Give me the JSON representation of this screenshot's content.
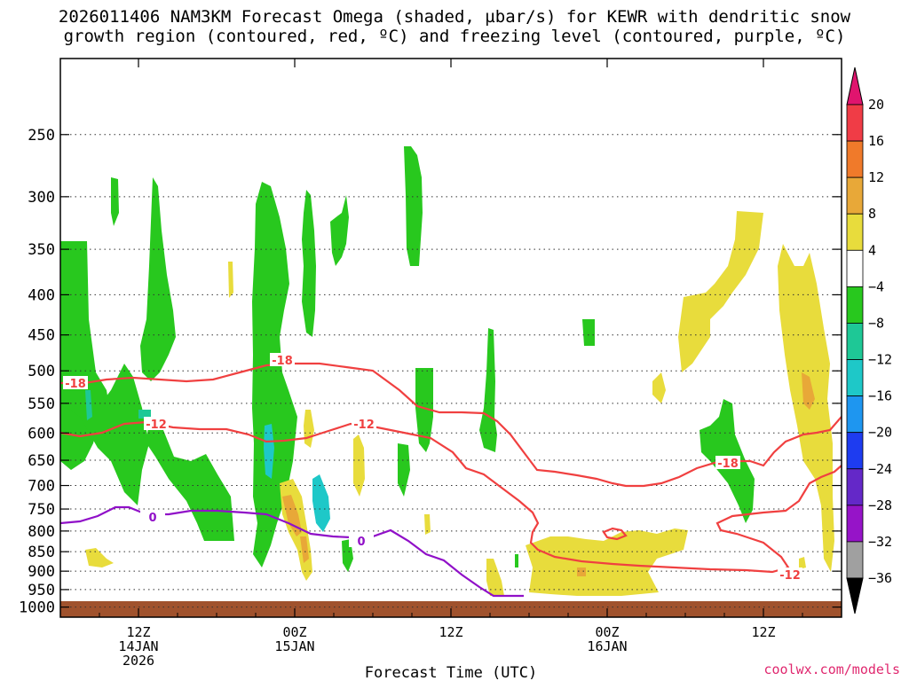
{
  "title_line1": "2026011406 NAM3KM Forecast Omega (shaded, µbar/s) for KEWR with dendritic snow",
  "title_line2": "growth region (contoured, red, ºC) and freezing level (contoured, purple, ºC)",
  "credit": "coolwx.com/models",
  "chart_data": {
    "type": "contour",
    "xlabel": "Forecast Time (UTC)",
    "ylabel": "",
    "y_log_pressure": true,
    "y_ticks": [
      "250",
      "300",
      "350",
      "400",
      "450",
      "500",
      "550",
      "600",
      "650",
      "700",
      "750",
      "800",
      "850",
      "900",
      "950",
      "1000"
    ],
    "y_tick_values": [
      250,
      300,
      350,
      400,
      450,
      500,
      550,
      600,
      650,
      700,
      750,
      800,
      850,
      900,
      950,
      1000
    ],
    "x_ticks": [
      {
        "label1": "12Z",
        "label2": "14JAN",
        "label3": "2026",
        "hour": 6
      },
      {
        "label1": "00Z",
        "label2": "15JAN",
        "label3": "",
        "hour": 18
      },
      {
        "label1": "12Z",
        "label2": "",
        "label3": "",
        "hour": 30
      },
      {
        "label1": "00Z",
        "label2": "16JAN",
        "label3": "",
        "hour": 42
      },
      {
        "label1": "12Z",
        "label2": "",
        "label3": "",
        "hour": 54
      }
    ],
    "x_range_hours": [
      0,
      60
    ],
    "y_range_hpa": [
      200,
      1030
    ],
    "colorbar": {
      "labels": [
        "20",
        "16",
        "12",
        "8",
        "4",
        "−4",
        "−8",
        "−12",
        "−16",
        "−20",
        "−24",
        "−28",
        "−32",
        "−36"
      ],
      "colors": [
        "#f03c46",
        "#f07a2a",
        "#e8a838",
        "#e8dc3c",
        "#ffffff",
        "#28c81e",
        "#1ec896",
        "#1ec8c8",
        "#1e96f0",
        "#1e3cf0",
        "#6428c8",
        "#9614c8",
        "#a0a0a0"
      ],
      "top_arrow": "#e0146e",
      "bottom_arrow": "#000000"
    },
    "contours": [
      {
        "label": "-18",
        "color": "#f04040"
      },
      {
        "label": "-12",
        "color": "#f04040"
      },
      {
        "label": "0",
        "color": "#9010c8"
      }
    ],
    "ground_color": "#a0522d"
  }
}
